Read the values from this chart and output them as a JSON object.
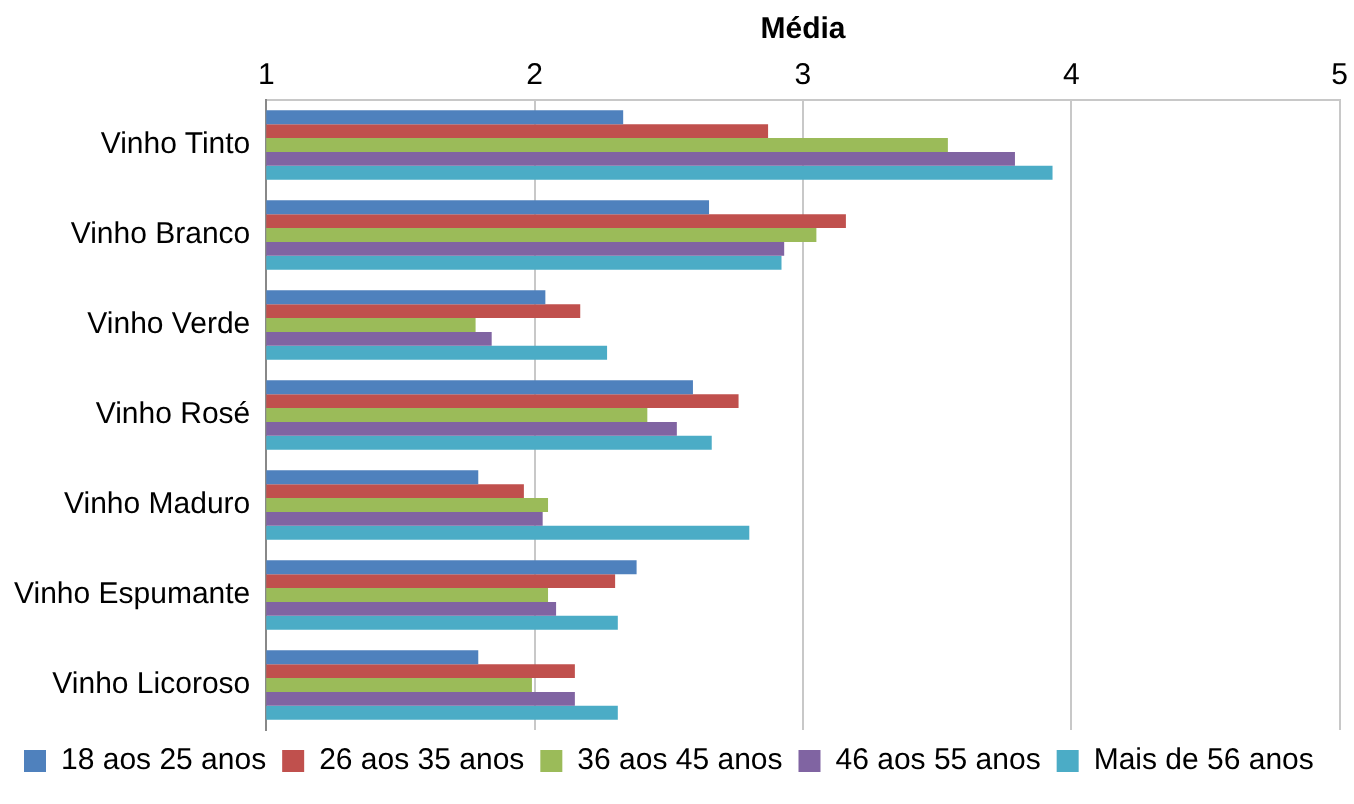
{
  "chart_data": {
    "type": "bar",
    "orientation": "horizontal",
    "xlabel": "Média",
    "categories": [
      "Vinho Tinto",
      "Vinho Branco",
      "Vinho Verde",
      "Vinho Rosé",
      "Vinho Maduro",
      "Vinho Espumante",
      "Vinho Licoroso"
    ],
    "series": [
      {
        "name": "18 aos 25 anos",
        "color": "#4f81bd",
        "values": [
          2.33,
          2.65,
          2.04,
          2.59,
          1.79,
          2.38,
          1.79
        ]
      },
      {
        "name": "26 aos 35 anos",
        "color": "#c0504d",
        "values": [
          2.87,
          3.16,
          2.17,
          2.76,
          1.96,
          2.3,
          2.15
        ]
      },
      {
        "name": "36 aos 45 anos",
        "color": "#9bbb59",
        "values": [
          3.54,
          3.05,
          1.78,
          2.42,
          2.05,
          2.05,
          1.99
        ]
      },
      {
        "name": "46 aos 55 anos",
        "color": "#8064a2",
        "values": [
          3.79,
          2.93,
          1.84,
          2.53,
          2.03,
          2.08,
          2.15
        ]
      },
      {
        "name": "Mais de 56 anos",
        "color": "#4bacc6",
        "values": [
          3.93,
          2.92,
          2.27,
          2.66,
          2.8,
          2.31,
          2.31
        ]
      }
    ],
    "xlim": [
      1,
      5
    ],
    "xticks": [
      1,
      2,
      3,
      4,
      5
    ],
    "grid": "x",
    "legend": "bottom"
  }
}
